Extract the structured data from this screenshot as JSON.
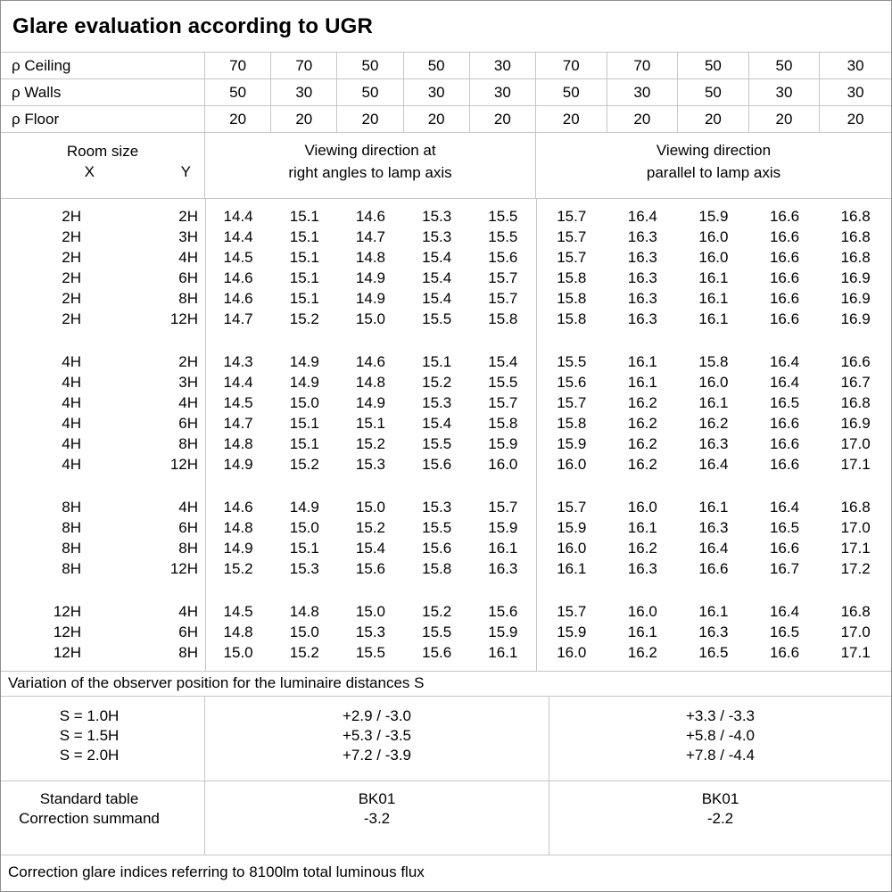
{
  "title": "Glare evaluation according to UGR",
  "reflectance": {
    "rows": [
      {
        "label": "ρ Ceiling",
        "values": [
          "70",
          "70",
          "50",
          "50",
          "30",
          "70",
          "70",
          "50",
          "50",
          "30"
        ]
      },
      {
        "label": "ρ Walls",
        "values": [
          "50",
          "30",
          "50",
          "30",
          "30",
          "50",
          "30",
          "50",
          "30",
          "30"
        ]
      },
      {
        "label": "ρ Floor",
        "values": [
          "20",
          "20",
          "20",
          "20",
          "20",
          "20",
          "20",
          "20",
          "20",
          "20"
        ]
      }
    ]
  },
  "ugr_table": {
    "room_size_label": "Room size",
    "x_label": "X",
    "y_label": "Y",
    "left_group_header_line1": "Viewing direction at",
    "left_group_header_line2": "right angles to lamp axis",
    "right_group_header_line1": "Viewing direction",
    "right_group_header_line2": "parallel to lamp axis",
    "groups": [
      {
        "rows": [
          {
            "x": "2H",
            "y": "2H",
            "values": [
              "14.4",
              "15.1",
              "14.6",
              "15.3",
              "15.5",
              "15.7",
              "16.4",
              "15.9",
              "16.6",
              "16.8"
            ]
          },
          {
            "x": "2H",
            "y": "3H",
            "values": [
              "14.4",
              "15.1",
              "14.7",
              "15.3",
              "15.5",
              "15.7",
              "16.3",
              "16.0",
              "16.6",
              "16.8"
            ]
          },
          {
            "x": "2H",
            "y": "4H",
            "values": [
              "14.5",
              "15.1",
              "14.8",
              "15.4",
              "15.6",
              "15.7",
              "16.3",
              "16.0",
              "16.6",
              "16.8"
            ]
          },
          {
            "x": "2H",
            "y": "6H",
            "values": [
              "14.6",
              "15.1",
              "14.9",
              "15.4",
              "15.7",
              "15.8",
              "16.3",
              "16.1",
              "16.6",
              "16.9"
            ]
          },
          {
            "x": "2H",
            "y": "8H",
            "values": [
              "14.6",
              "15.1",
              "14.9",
              "15.4",
              "15.7",
              "15.8",
              "16.3",
              "16.1",
              "16.6",
              "16.9"
            ]
          },
          {
            "x": "2H",
            "y": "12H",
            "values": [
              "14.7",
              "15.2",
              "15.0",
              "15.5",
              "15.8",
              "15.8",
              "16.3",
              "16.1",
              "16.6",
              "16.9"
            ]
          }
        ]
      },
      {
        "rows": [
          {
            "x": "4H",
            "y": "2H",
            "values": [
              "14.3",
              "14.9",
              "14.6",
              "15.1",
              "15.4",
              "15.5",
              "16.1",
              "15.8",
              "16.4",
              "16.6"
            ]
          },
          {
            "x": "4H",
            "y": "3H",
            "values": [
              "14.4",
              "14.9",
              "14.8",
              "15.2",
              "15.5",
              "15.6",
              "16.1",
              "16.0",
              "16.4",
              "16.7"
            ]
          },
          {
            "x": "4H",
            "y": "4H",
            "values": [
              "14.5",
              "15.0",
              "14.9",
              "15.3",
              "15.7",
              "15.7",
              "16.2",
              "16.1",
              "16.5",
              "16.8"
            ]
          },
          {
            "x": "4H",
            "y": "6H",
            "values": [
              "14.7",
              "15.1",
              "15.1",
              "15.4",
              "15.8",
              "15.8",
              "16.2",
              "16.2",
              "16.6",
              "16.9"
            ]
          },
          {
            "x": "4H",
            "y": "8H",
            "values": [
              "14.8",
              "15.1",
              "15.2",
              "15.5",
              "15.9",
              "15.9",
              "16.2",
              "16.3",
              "16.6",
              "17.0"
            ]
          },
          {
            "x": "4H",
            "y": "12H",
            "values": [
              "14.9",
              "15.2",
              "15.3",
              "15.6",
              "16.0",
              "16.0",
              "16.2",
              "16.4",
              "16.6",
              "17.1"
            ]
          }
        ]
      },
      {
        "rows": [
          {
            "x": "8H",
            "y": "4H",
            "values": [
              "14.6",
              "14.9",
              "15.0",
              "15.3",
              "15.7",
              "15.7",
              "16.0",
              "16.1",
              "16.4",
              "16.8"
            ]
          },
          {
            "x": "8H",
            "y": "6H",
            "values": [
              "14.8",
              "15.0",
              "15.2",
              "15.5",
              "15.9",
              "15.9",
              "16.1",
              "16.3",
              "16.5",
              "17.0"
            ]
          },
          {
            "x": "8H",
            "y": "8H",
            "values": [
              "14.9",
              "15.1",
              "15.4",
              "15.6",
              "16.1",
              "16.0",
              "16.2",
              "16.4",
              "16.6",
              "17.1"
            ]
          },
          {
            "x": "8H",
            "y": "12H",
            "values": [
              "15.2",
              "15.3",
              "15.6",
              "15.8",
              "16.3",
              "16.1",
              "16.3",
              "16.6",
              "16.7",
              "17.2"
            ]
          }
        ]
      },
      {
        "rows": [
          {
            "x": "12H",
            "y": "4H",
            "values": [
              "14.5",
              "14.8",
              "15.0",
              "15.2",
              "15.6",
              "15.7",
              "16.0",
              "16.1",
              "16.4",
              "16.8"
            ]
          },
          {
            "x": "12H",
            "y": "6H",
            "values": [
              "14.8",
              "15.0",
              "15.3",
              "15.5",
              "15.9",
              "15.9",
              "16.1",
              "16.3",
              "16.5",
              "17.0"
            ]
          },
          {
            "x": "12H",
            "y": "8H",
            "values": [
              "15.0",
              "15.2",
              "15.5",
              "15.6",
              "16.1",
              "16.0",
              "16.2",
              "16.5",
              "16.6",
              "17.1"
            ]
          }
        ]
      }
    ]
  },
  "variation": {
    "title": "Variation of the observer position for the luminaire distances S",
    "rows": [
      {
        "s": "S = 1.0H",
        "right_angles": "+2.9 / -3.0",
        "parallel": "+3.3 / -3.3"
      },
      {
        "s": "S = 1.5H",
        "right_angles": "+5.3 / -3.5",
        "parallel": "+5.8 / -4.0"
      },
      {
        "s": "S = 2.0H",
        "right_angles": "+7.2 / -3.9",
        "parallel": "+7.8 / -4.4"
      }
    ]
  },
  "summary": {
    "standard_table_label": "Standard table",
    "correction_summand_label": "Correction summand",
    "right_angles": {
      "standard_table": "BK01",
      "correction_summand": "-3.2"
    },
    "parallel": {
      "standard_table": "BK01",
      "correction_summand": "-2.2"
    }
  },
  "footer": "Correction glare indices referring to 8100lm total luminous flux"
}
